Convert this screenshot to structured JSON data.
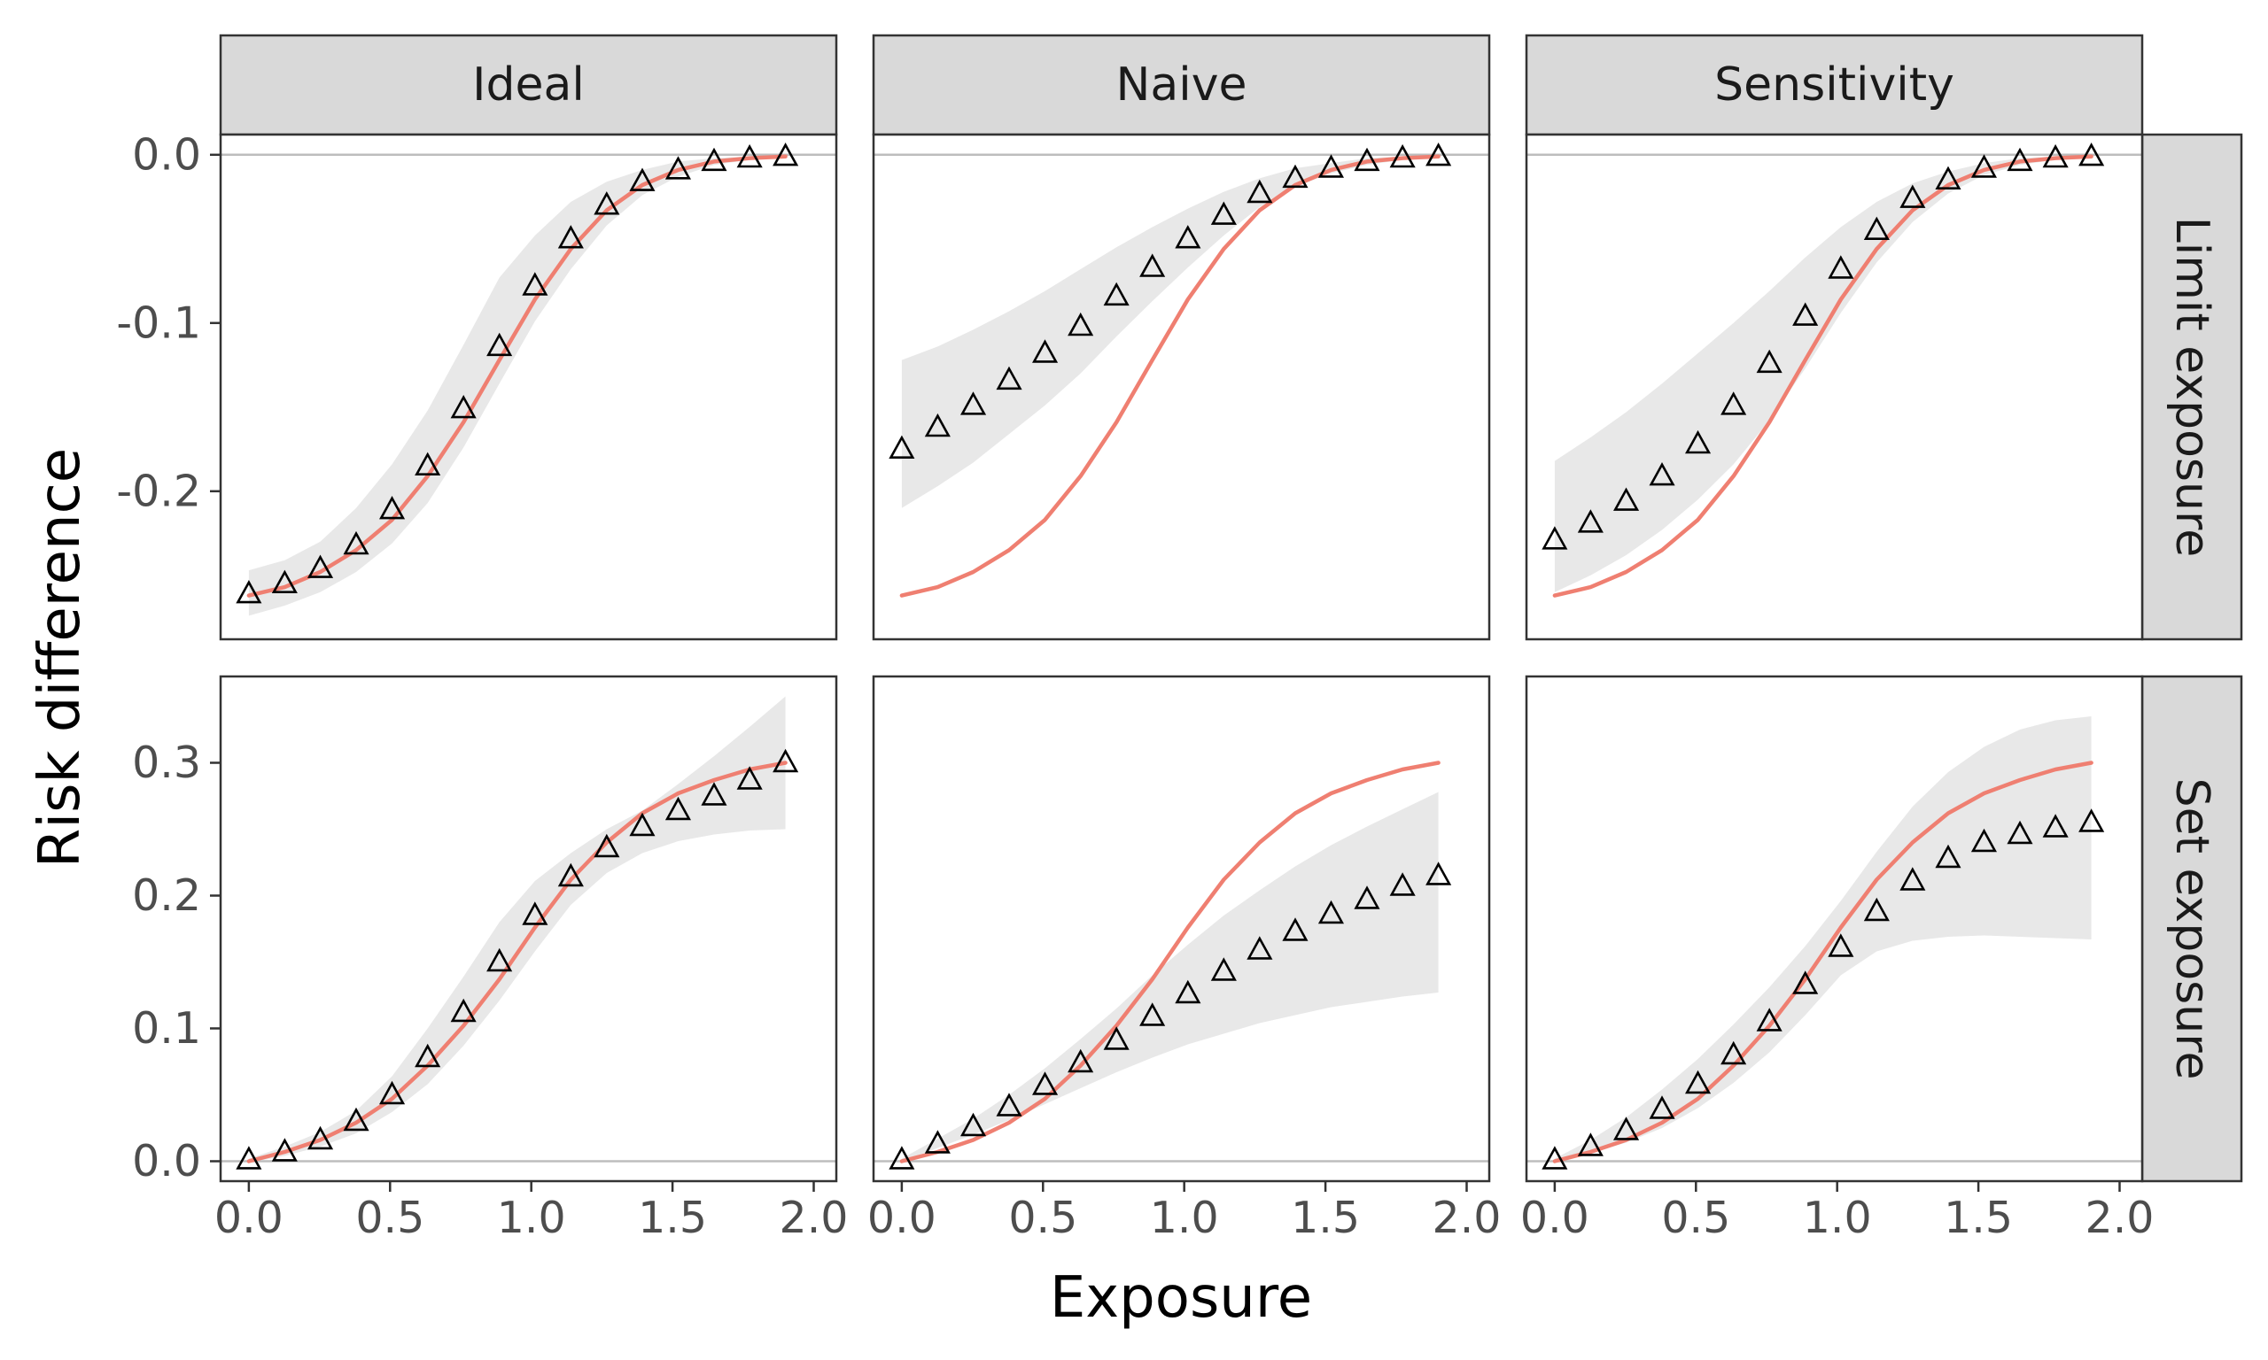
{
  "chart_data": {
    "type": "line",
    "xlabel": "Exposure",
    "ylabel": "Risk difference",
    "columns": [
      "Ideal",
      "Naive",
      "Sensitivity"
    ],
    "rows": [
      "Limit exposure",
      "Set exposure"
    ],
    "xlim": [
      -0.1,
      2.08
    ],
    "x_ticks": [
      0,
      0.5,
      1,
      1.5,
      2
    ],
    "x_tick_labels": [
      "0.0",
      "0.5",
      "1.0",
      "1.5",
      "2.0"
    ],
    "row_scales": {
      "Limit exposure": {
        "ylim": [
          -0.288,
          0.012
        ],
        "ticks": [
          0,
          -0.1,
          -0.2
        ],
        "tick_labels": [
          "0.0",
          "-0.1",
          "-0.2"
        ]
      },
      "Set exposure": {
        "ylim": [
          -0.015,
          0.365
        ],
        "ticks": [
          0,
          0.1,
          0.2,
          0.3
        ],
        "tick_labels": [
          "0.0",
          "0.1",
          "0.2",
          "0.3"
        ]
      }
    },
    "reference_line_y": 0,
    "truth_color": "#ef7f71",
    "band_color": "#e8e8e8",
    "x": [
      0.0,
      0.127,
      0.253,
      0.38,
      0.507,
      0.633,
      0.76,
      0.887,
      1.013,
      1.14,
      1.267,
      1.393,
      1.52,
      1.647,
      1.773,
      1.9
    ],
    "panels": [
      {
        "column": "Ideal",
        "row": "Limit exposure",
        "truth": [
          -0.262,
          -0.257,
          -0.248,
          -0.235,
          -0.217,
          -0.191,
          -0.159,
          -0.122,
          -0.086,
          -0.056,
          -0.033,
          -0.018,
          -0.009,
          -0.004,
          -0.002,
          -0.001
        ],
        "estimate": [
          -0.261,
          -0.255,
          -0.246,
          -0.232,
          -0.211,
          -0.185,
          -0.151,
          -0.114,
          -0.078,
          -0.05,
          -0.03,
          -0.016,
          -0.009,
          -0.004,
          -0.002,
          -0.001
        ],
        "lower": [
          -0.274,
          -0.268,
          -0.26,
          -0.248,
          -0.231,
          -0.207,
          -0.174,
          -0.136,
          -0.099,
          -0.068,
          -0.042,
          -0.024,
          -0.013,
          -0.006,
          -0.003,
          -0.001
        ],
        "upper": [
          -0.247,
          -0.241,
          -0.23,
          -0.21,
          -0.184,
          -0.152,
          -0.113,
          -0.073,
          -0.048,
          -0.028,
          -0.016,
          -0.009,
          -0.004,
          -0.002,
          -0.001,
          0.0
        ]
      },
      {
        "column": "Naive",
        "row": "Limit exposure",
        "truth": [
          -0.262,
          -0.257,
          -0.248,
          -0.235,
          -0.217,
          -0.191,
          -0.159,
          -0.122,
          -0.086,
          -0.056,
          -0.033,
          -0.018,
          -0.009,
          -0.004,
          -0.002,
          -0.001
        ],
        "estimate": [
          -0.175,
          -0.162,
          -0.149,
          -0.134,
          -0.118,
          -0.102,
          -0.084,
          -0.067,
          -0.05,
          -0.036,
          -0.023,
          -0.014,
          -0.008,
          -0.004,
          -0.002,
          -0.001
        ],
        "lower": [
          -0.21,
          -0.197,
          -0.183,
          -0.166,
          -0.149,
          -0.13,
          -0.108,
          -0.087,
          -0.067,
          -0.048,
          -0.031,
          -0.019,
          -0.011,
          -0.006,
          -0.003,
          -0.001
        ],
        "upper": [
          -0.122,
          -0.114,
          -0.104,
          -0.093,
          -0.081,
          -0.068,
          -0.055,
          -0.043,
          -0.032,
          -0.022,
          -0.014,
          -0.008,
          -0.005,
          -0.002,
          -0.001,
          0.0
        ]
      },
      {
        "column": "Sensitivity",
        "row": "Limit exposure",
        "truth": [
          -0.262,
          -0.257,
          -0.248,
          -0.235,
          -0.217,
          -0.191,
          -0.159,
          -0.122,
          -0.086,
          -0.056,
          -0.033,
          -0.018,
          -0.009,
          -0.004,
          -0.002,
          -0.001
        ],
        "estimate": [
          -0.229,
          -0.219,
          -0.206,
          -0.191,
          -0.172,
          -0.149,
          -0.124,
          -0.096,
          -0.068,
          -0.045,
          -0.026,
          -0.015,
          -0.008,
          -0.004,
          -0.002,
          -0.001
        ],
        "lower": [
          -0.26,
          -0.25,
          -0.238,
          -0.223,
          -0.205,
          -0.184,
          -0.158,
          -0.127,
          -0.094,
          -0.064,
          -0.04,
          -0.023,
          -0.012,
          -0.006,
          -0.003,
          -0.001
        ],
        "upper": [
          -0.182,
          -0.168,
          -0.153,
          -0.136,
          -0.118,
          -0.1,
          -0.081,
          -0.061,
          -0.043,
          -0.028,
          -0.017,
          -0.01,
          -0.005,
          -0.002,
          -0.001,
          0.0
        ]
      },
      {
        "column": "Ideal",
        "row": "Set exposure",
        "truth": [
          0.0,
          0.007,
          0.016,
          0.029,
          0.047,
          0.072,
          0.102,
          0.137,
          0.176,
          0.212,
          0.24,
          0.262,
          0.277,
          0.287,
          0.295,
          0.3
        ],
        "estimate": [
          0.001,
          0.007,
          0.016,
          0.03,
          0.05,
          0.078,
          0.112,
          0.15,
          0.185,
          0.214,
          0.236,
          0.252,
          0.264,
          0.275,
          0.287,
          0.3
        ],
        "lower": [
          -0.001,
          0.004,
          0.011,
          0.021,
          0.037,
          0.058,
          0.087,
          0.121,
          0.158,
          0.193,
          0.217,
          0.232,
          0.241,
          0.246,
          0.249,
          0.25
        ],
        "upper": [
          0.002,
          0.011,
          0.022,
          0.038,
          0.064,
          0.1,
          0.139,
          0.18,
          0.211,
          0.232,
          0.25,
          0.264,
          0.284,
          0.305,
          0.327,
          0.35
        ]
      },
      {
        "column": "Naive",
        "row": "Set exposure",
        "truth": [
          0.0,
          0.007,
          0.016,
          0.029,
          0.047,
          0.072,
          0.102,
          0.137,
          0.176,
          0.212,
          0.24,
          0.262,
          0.277,
          0.287,
          0.295,
          0.3
        ],
        "estimate": [
          0.001,
          0.013,
          0.026,
          0.041,
          0.057,
          0.074,
          0.091,
          0.109,
          0.126,
          0.143,
          0.159,
          0.173,
          0.186,
          0.197,
          0.207,
          0.215
        ],
        "lower": [
          0.0,
          0.01,
          0.02,
          0.031,
          0.043,
          0.055,
          0.067,
          0.078,
          0.088,
          0.096,
          0.104,
          0.11,
          0.116,
          0.12,
          0.124,
          0.127
        ],
        "upper": [
          0.002,
          0.017,
          0.032,
          0.05,
          0.07,
          0.092,
          0.115,
          0.14,
          0.163,
          0.185,
          0.204,
          0.222,
          0.238,
          0.252,
          0.265,
          0.278
        ]
      },
      {
        "column": "Sensitivity",
        "row": "Set exposure",
        "truth": [
          0.0,
          0.007,
          0.016,
          0.029,
          0.047,
          0.072,
          0.102,
          0.137,
          0.176,
          0.212,
          0.24,
          0.262,
          0.277,
          0.287,
          0.295,
          0.3
        ],
        "estimate": [
          0.001,
          0.011,
          0.023,
          0.039,
          0.058,
          0.08,
          0.105,
          0.133,
          0.161,
          0.188,
          0.211,
          0.228,
          0.24,
          0.246,
          0.251,
          0.255
        ],
        "lower": [
          0.0,
          0.006,
          0.014,
          0.025,
          0.04,
          0.059,
          0.082,
          0.11,
          0.14,
          0.158,
          0.166,
          0.169,
          0.17,
          0.169,
          0.168,
          0.167
        ],
        "upper": [
          0.002,
          0.016,
          0.033,
          0.054,
          0.077,
          0.103,
          0.131,
          0.162,
          0.196,
          0.233,
          0.267,
          0.293,
          0.312,
          0.325,
          0.332,
          0.335
        ]
      }
    ]
  }
}
